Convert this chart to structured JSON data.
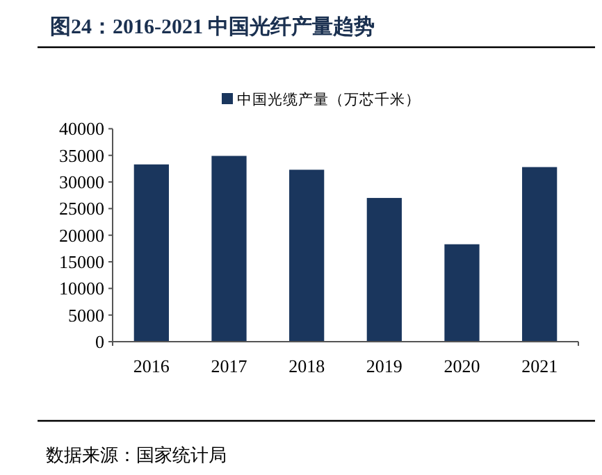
{
  "chart_data": {
    "type": "bar",
    "title": "图24：2016-2021 中国光纤产量趋势",
    "categories": [
      "2016",
      "2017",
      "2018",
      "2019",
      "2020",
      "2021"
    ],
    "series": [
      {
        "name": "中国光缆产量（万芯千米）",
        "color": "#1a365d",
        "values": [
          33300,
          34900,
          32300,
          27000,
          18300,
          32800
        ]
      }
    ],
    "ylim": [
      0,
      40000
    ],
    "yticks": [
      0,
      5000,
      10000,
      15000,
      20000,
      25000,
      30000,
      35000,
      40000
    ],
    "grid": false,
    "legend": "top",
    "annotations": [
      "数据来源：国家统计局"
    ]
  }
}
